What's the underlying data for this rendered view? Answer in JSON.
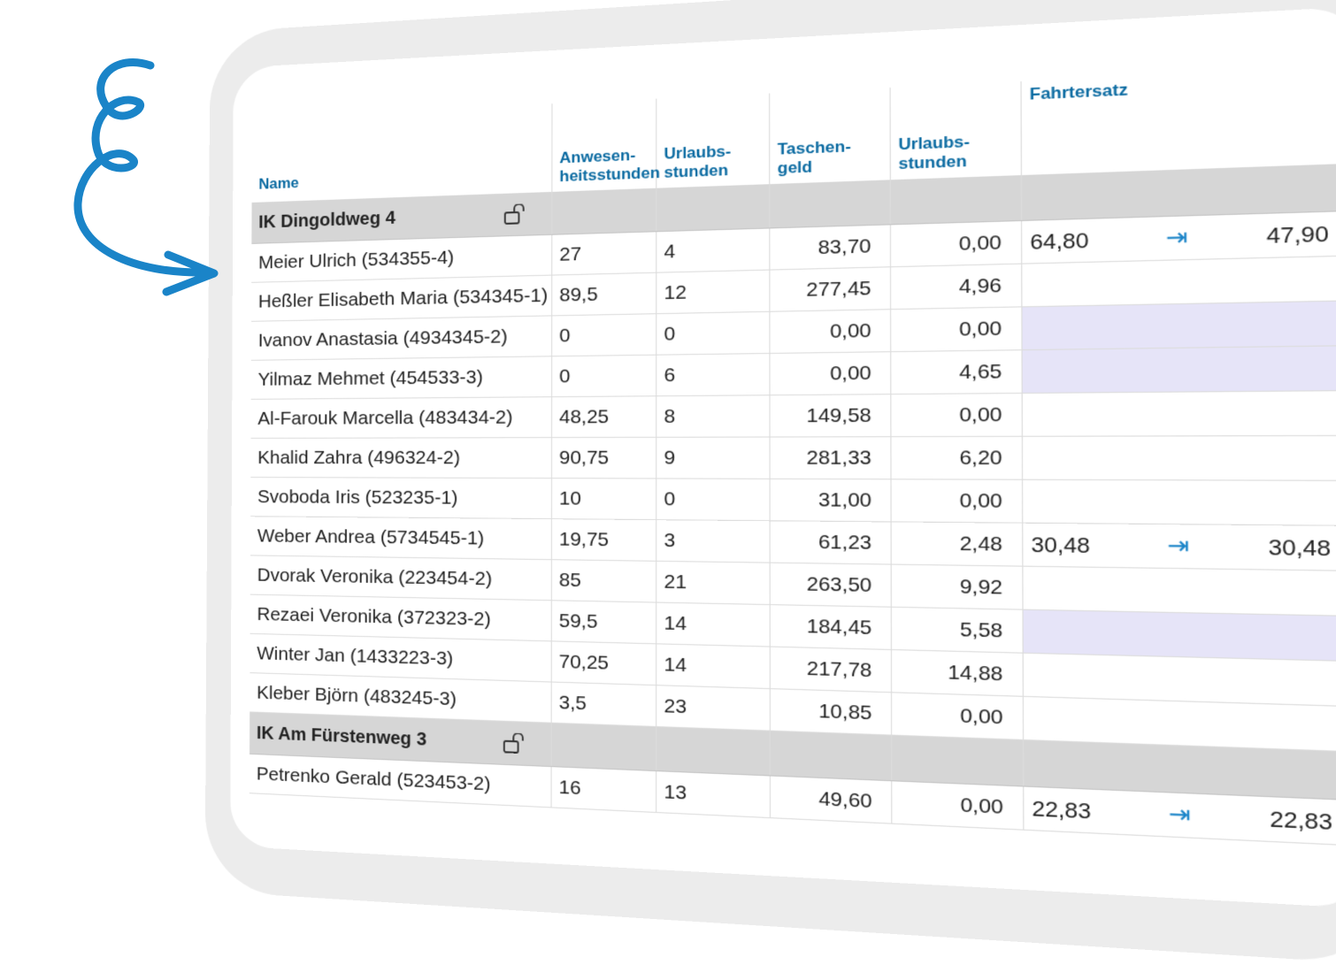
{
  "columns": {
    "name": "Name",
    "anwesenheit_1": "Anwesen-",
    "anwesenheit_2": "heitsstunden",
    "urlaub_1": "Urlaubs-",
    "urlaub_2": "stunden",
    "taschengeld_1": "Taschen-",
    "taschengeld_2": "geld",
    "urlaubsstunden_1": "Urlaubs-",
    "urlaubsstunden_2": "stunden",
    "fahrtersatz": "Fahrtersatz"
  },
  "groups": [
    {
      "name": "IK Dingoldweg 4",
      "rows": [
        {
          "name": "Meier Ulrich (534355-4)",
          "a": "27",
          "u": "4",
          "t": "83,70",
          "uh": "0,00",
          "f1": "64,80",
          "f2": "47,90",
          "lav": false
        },
        {
          "name": "Heßler Elisabeth Maria (534345-1)",
          "a": "89,5",
          "u": "12",
          "t": "277,45",
          "uh": "4,96",
          "f1": "",
          "f2": "",
          "lav": false
        },
        {
          "name": "Ivanov Anastasia (4934345-2)",
          "a": "0",
          "u": "0",
          "t": "0,00",
          "uh": "0,00",
          "f1": "",
          "f2": "",
          "lav": true
        },
        {
          "name": "Yilmaz Mehmet (454533-3)",
          "a": "0",
          "u": "6",
          "t": "0,00",
          "uh": "4,65",
          "f1": "",
          "f2": "",
          "lav": true
        },
        {
          "name": "Al-Farouk Marcella (483434-2)",
          "a": "48,25",
          "u": "8",
          "t": "149,58",
          "uh": "0,00",
          "f1": "",
          "f2": "",
          "lav": false
        },
        {
          "name": "Khalid Zahra (496324-2)",
          "a": "90,75",
          "u": "9",
          "t": "281,33",
          "uh": "6,20",
          "f1": "",
          "f2": "",
          "lav": false
        },
        {
          "name": "Svoboda Iris (523235-1)",
          "a": "10",
          "u": "0",
          "t": "31,00",
          "uh": "0,00",
          "f1": "",
          "f2": "",
          "lav": false
        },
        {
          "name": "Weber Andrea (5734545-1)",
          "a": "19,75",
          "u": "3",
          "t": "61,23",
          "uh": "2,48",
          "f1": "30,48",
          "f2": "30,48",
          "lav": false
        },
        {
          "name": "Dvorak Veronika (223454-2)",
          "a": "85",
          "u": "21",
          "t": "263,50",
          "uh": "9,92",
          "f1": "",
          "f2": "",
          "lav": false
        },
        {
          "name": "Rezaei Veronika (372323-2)",
          "a": "59,5",
          "u": "14",
          "t": "184,45",
          "uh": "5,58",
          "f1": "",
          "f2": "",
          "lav": true
        },
        {
          "name": "Winter Jan (1433223-3)",
          "a": "70,25",
          "u": "14",
          "t": "217,78",
          "uh": "14,88",
          "f1": "",
          "f2": "",
          "lav": false
        },
        {
          "name": "Kleber Björn (483245-3)",
          "a": "3,5",
          "u": "23",
          "t": "10,85",
          "uh": "0,00",
          "f1": "",
          "f2": "",
          "lav": false
        }
      ]
    },
    {
      "name": "IK Am Fürstenweg 3",
      "rows": [
        {
          "name": "Petrenko Gerald (523453-2)",
          "a": "16",
          "u": "13",
          "t": "49,60",
          "uh": "0,00",
          "f1": "22,83",
          "f2": "22,83",
          "lav": false
        }
      ]
    }
  ],
  "icons": {
    "lock": "unlocked-padlock-icon",
    "jump": "arrow-right-to-bar-icon",
    "decor": "spiral-arrow-icon"
  },
  "colors": {
    "header_text": "#0a6aa1",
    "group_bg": "#d6d6d6",
    "highlight": "#e6e4f8",
    "accent": "#1a84c8"
  }
}
